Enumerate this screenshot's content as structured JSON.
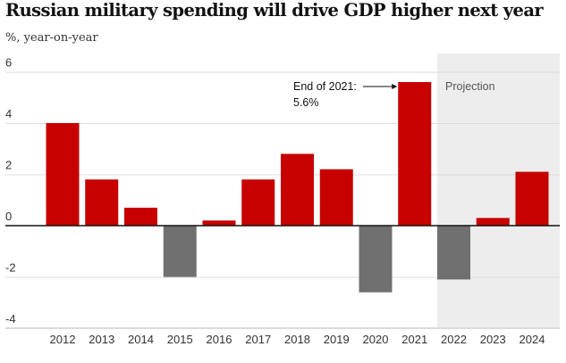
{
  "chart_data": {
    "type": "bar",
    "title": "Russian military spending will drive GDP higher next year",
    "ylabel": "%, year-on-year",
    "xlabel": "",
    "ylim": [
      -4,
      6
    ],
    "yticks": [
      6,
      4,
      2,
      0,
      -2,
      -4
    ],
    "categories": [
      "2012",
      "2013",
      "2014",
      "2015",
      "2016",
      "2017",
      "2018",
      "2019",
      "2020",
      "2021",
      "2022",
      "2023",
      "2024"
    ],
    "values": [
      4.0,
      1.8,
      0.7,
      -2.0,
      0.2,
      1.8,
      2.8,
      2.2,
      -2.6,
      5.6,
      -2.1,
      0.3,
      2.1
    ],
    "projection_from": "2022",
    "projection_label": "Projection",
    "annotation": {
      "category": "2021",
      "line1": "End of 2021:",
      "line2": "5.6%"
    },
    "colors": {
      "positive": "#c70000",
      "negative": "#707070",
      "projection_bg": "#ededed",
      "grid": "#dcdcdc",
      "zero": "#121212"
    }
  }
}
